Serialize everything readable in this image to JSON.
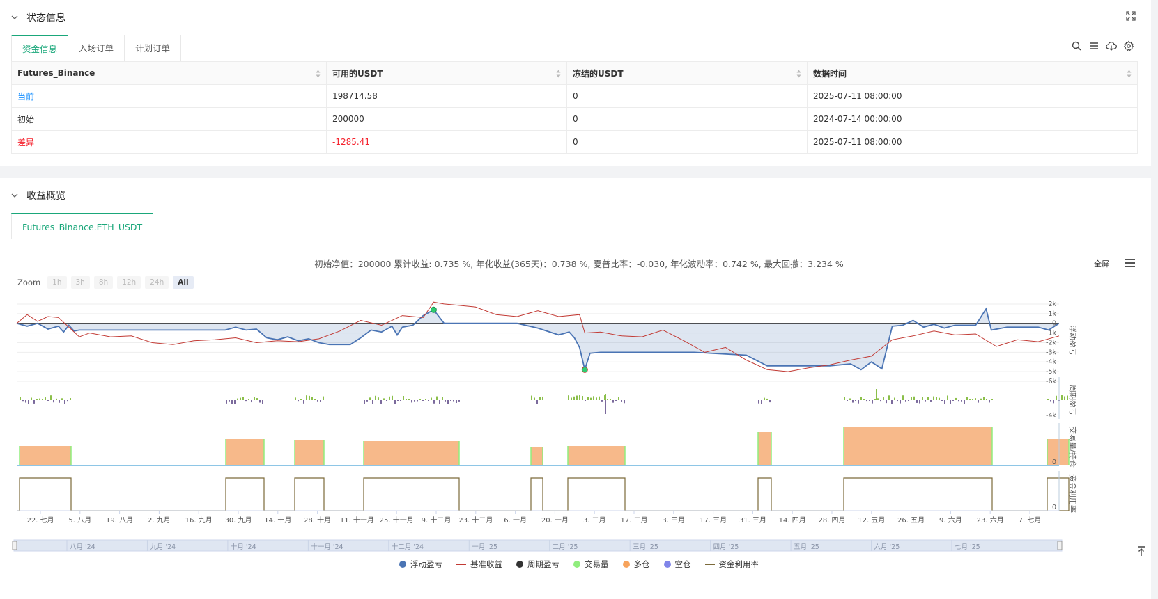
{
  "status": {
    "title": "状态信息",
    "tabs": [
      "资金信息",
      "入场订单",
      "计划订单"
    ],
    "table": {
      "headers": [
        "Futures_Binance",
        "可用的USDT",
        "冻结的USDT",
        "数据时间"
      ],
      "rows": [
        {
          "label": "当前",
          "available": "198714.58",
          "frozen": "0",
          "time": "2025-07-11 08:00:00"
        },
        {
          "label": "初始",
          "available": "200000",
          "frozen": "0",
          "time": "2024-07-14 00:00:00"
        },
        {
          "label": "差异",
          "available": "-1285.41",
          "frozen": "0",
          "time": "2025-07-11 08:00:00"
        }
      ]
    }
  },
  "profit": {
    "title": "收益概览",
    "tab": "Futures_Binance.ETH_USDT",
    "summary": "初始净值：200000 累计收益: 0.735 %, 年化收益(365天)：0.738 %, 夏普比率：-0.030, 年化波动率：0.742 %, 最大回撤：3.234 %",
    "fullscreen": "全屏",
    "zoom": {
      "label": "Zoom",
      "buttons": [
        "1h",
        "3h",
        "8h",
        "12h",
        "24h",
        "All"
      ],
      "active": "All"
    }
  },
  "chart_data": {
    "type": "line",
    "x_ticks": [
      "22. 七月",
      "5. 八月",
      "19. 八月",
      "2. 九月",
      "16. 九月",
      "30. 九月",
      "14. 十月",
      "28. 十月",
      "11. 十一月",
      "25. 十一月",
      "9. 十二月",
      "23. 十二月",
      "6. 一月",
      "20. 一月",
      "3. 二月",
      "17. 二月",
      "3. 三月",
      "17. 三月",
      "31. 三月",
      "14. 四月",
      "28. 四月",
      "12. 五月",
      "26. 五月",
      "9. 六月",
      "23. 六月",
      "7. 七月"
    ],
    "navigator_ticks": [
      "八月 '24",
      "九月 '24",
      "十月 '24",
      "十一月 '24",
      "十二月 '24",
      "一月 '25",
      "二月 '25",
      "三月 '25",
      "四月 '25",
      "五月 '25",
      "六月 '25",
      "七月 '25"
    ],
    "panels": [
      {
        "name": "浮动盈亏",
        "y_ticks": [
          "2k",
          "1k",
          "0",
          "-1k",
          "-2k",
          "-3k",
          "-4k",
          "-5k",
          "-6k"
        ],
        "ylim": [
          -6000,
          2500
        ]
      },
      {
        "name": "周期盈亏",
        "y_ticks": [
          "-4k"
        ]
      },
      {
        "name": "交易量/持仓",
        "y_ticks": [
          "0"
        ]
      },
      {
        "name": "资金利用率",
        "y_ticks": [
          "0"
        ]
      }
    ],
    "series": [
      {
        "name": "浮动盈亏",
        "color": "#4a74b4",
        "points": [
          [
            0,
            0
          ],
          [
            10,
            -300
          ],
          [
            20,
            0
          ],
          [
            30,
            -600
          ],
          [
            40,
            -300
          ],
          [
            45,
            -900
          ],
          [
            50,
            -200
          ],
          [
            55,
            -800
          ],
          [
            60,
            -700
          ],
          [
            100,
            -700
          ],
          [
            200,
            -700
          ],
          [
            210,
            -400
          ],
          [
            220,
            -700
          ],
          [
            230,
            -600
          ],
          [
            240,
            -1500
          ],
          [
            250,
            -1700
          ],
          [
            260,
            -1400
          ],
          [
            270,
            -1800
          ],
          [
            280,
            -1600
          ],
          [
            290,
            -2000
          ],
          [
            300,
            -2200
          ],
          [
            320,
            -2200
          ],
          [
            330,
            -1500
          ],
          [
            340,
            -700
          ],
          [
            350,
            -900
          ],
          [
            360,
            -300
          ],
          [
            365,
            -1200
          ],
          [
            370,
            -400
          ],
          [
            380,
            -200
          ],
          [
            390,
            800
          ],
          [
            400,
            1400
          ],
          [
            410,
            0
          ],
          [
            480,
            0
          ],
          [
            500,
            -500
          ],
          [
            520,
            -1200
          ],
          [
            530,
            -900
          ],
          [
            535,
            -1500
          ],
          [
            540,
            -2500
          ],
          [
            545,
            -4800
          ],
          [
            550,
            -3100
          ],
          [
            560,
            -3000
          ],
          [
            650,
            -3000
          ],
          [
            700,
            -3300
          ],
          [
            720,
            -4400
          ],
          [
            780,
            -4400
          ],
          [
            800,
            -4200
          ],
          [
            810,
            -4800
          ],
          [
            820,
            -4000
          ],
          [
            830,
            -4700
          ],
          [
            840,
            -300
          ],
          [
            850,
            -200
          ],
          [
            860,
            300
          ],
          [
            870,
            -400
          ],
          [
            880,
            -100
          ],
          [
            890,
            -500
          ],
          [
            900,
            -200
          ],
          [
            920,
            -200
          ],
          [
            930,
            1500
          ],
          [
            935,
            -700
          ],
          [
            950,
            -400
          ],
          [
            980,
            -400
          ],
          [
            990,
            -700
          ],
          [
            1000,
            0
          ]
        ]
      },
      {
        "name": "基准收益",
        "color": "#c23a34",
        "points": [
          [
            0,
            0
          ],
          [
            10,
            900
          ],
          [
            20,
            200
          ],
          [
            30,
            700
          ],
          [
            40,
            600
          ],
          [
            50,
            -400
          ],
          [
            60,
            -1400
          ],
          [
            70,
            -1000
          ],
          [
            90,
            -1400
          ],
          [
            110,
            -1300
          ],
          [
            130,
            -2000
          ],
          [
            150,
            -2200
          ],
          [
            170,
            -1800
          ],
          [
            190,
            -1700
          ],
          [
            210,
            -1500
          ],
          [
            230,
            -2000
          ],
          [
            250,
            -1800
          ],
          [
            270,
            -1900
          ],
          [
            290,
            -1600
          ],
          [
            310,
            -800
          ],
          [
            330,
            300
          ],
          [
            350,
            -200
          ],
          [
            370,
            800
          ],
          [
            390,
            600
          ],
          [
            400,
            2200
          ],
          [
            410,
            2000
          ],
          [
            420,
            1900
          ],
          [
            440,
            1700
          ],
          [
            460,
            900
          ],
          [
            480,
            700
          ],
          [
            500,
            1300
          ],
          [
            520,
            700
          ],
          [
            540,
            900
          ],
          [
            545,
            -1000
          ],
          [
            560,
            -900
          ],
          [
            580,
            -1300
          ],
          [
            600,
            -1400
          ],
          [
            620,
            -700
          ],
          [
            640,
            -1800
          ],
          [
            660,
            -3000
          ],
          [
            680,
            -2500
          ],
          [
            700,
            -3800
          ],
          [
            720,
            -4800
          ],
          [
            740,
            -5000
          ],
          [
            760,
            -4600
          ],
          [
            780,
            -4300
          ],
          [
            800,
            -3800
          ],
          [
            820,
            -3400
          ],
          [
            840,
            -1700
          ],
          [
            860,
            -1300
          ],
          [
            880,
            -800
          ],
          [
            900,
            -1200
          ],
          [
            920,
            -1100
          ],
          [
            940,
            -2400
          ],
          [
            960,
            -1700
          ],
          [
            980,
            -1900
          ],
          [
            1000,
            -1300
          ]
        ]
      },
      {
        "name": "周期盈亏",
        "color": "#8bbf4a"
      },
      {
        "name": "交易量",
        "color": "#90ed7d"
      },
      {
        "name": "多仓",
        "color": "#f7a35c",
        "blocks": [
          [
            14,
            88
          ],
          [
            310,
            365
          ],
          [
            409,
            451
          ],
          [
            508,
            645
          ],
          [
            748,
            765
          ],
          [
            801,
            883
          ],
          [
            1074,
            1093
          ],
          [
            1197,
            1410
          ],
          [
            1489,
            1520
          ]
        ]
      },
      {
        "name": "空仓",
        "color": "#8085e9"
      },
      {
        "name": "资金利用率",
        "color": "#7c6a3a"
      }
    ],
    "markers": [
      {
        "label": "entry",
        "color": "#2ecc71"
      },
      {
        "label": "exit",
        "color": "#2ecc71"
      }
    ]
  }
}
